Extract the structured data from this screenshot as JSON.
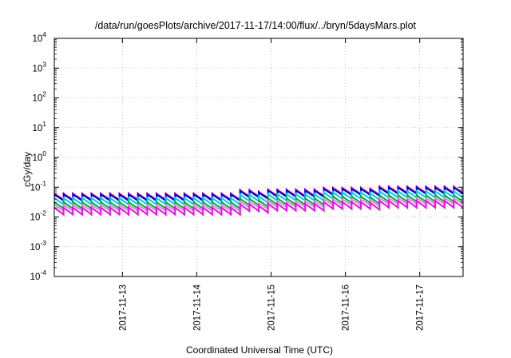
{
  "chart_data": {
    "type": "line",
    "title": "/data/run/goesPlots/archive/2017-11-17/14:00/flux/../bryn/5daysMars.plot",
    "xlabel": "Coordinated Universal Time (UTC)",
    "ylabel": "cGy/day",
    "yscale": "log",
    "ylim": [
      0.0001,
      10000
    ],
    "xlim": [
      "2017-11-12T02:00",
      "2017-11-17T14:00"
    ],
    "grid": true,
    "legend": "none",
    "x_ticks": [
      "2017-11-13",
      "2017-11-14",
      "2017-11-15",
      "2017-11-16",
      "2017-11-17"
    ],
    "y_ticks": [
      {
        "base": "10",
        "exp": "-4"
      },
      {
        "base": "10",
        "exp": "-3"
      },
      {
        "base": "10",
        "exp": "-2"
      },
      {
        "base": "10",
        "exp": "-1"
      },
      {
        "base": "10",
        "exp": "0"
      },
      {
        "base": "10",
        "exp": "1"
      },
      {
        "base": "10",
        "exp": "2"
      },
      {
        "base": "10",
        "exp": "3"
      },
      {
        "base": "10",
        "exp": "4"
      }
    ],
    "sawtooth_period_hours": 3,
    "segments": [
      {
        "start": "2017-11-12T02:00",
        "end": "2017-11-14T13:00",
        "scale": 1.0
      },
      {
        "start": "2017-11-14T13:00",
        "end": "2017-11-14T21:00",
        "scale": 1.3
      },
      {
        "start": "2017-11-14T21:00",
        "end": "2017-11-15T00:00",
        "scale": 1.15
      },
      {
        "start": "2017-11-15T00:00",
        "end": "2017-11-15T17:00",
        "scale": 1.35
      },
      {
        "start": "2017-11-15T17:00",
        "end": "2017-11-16T09:00",
        "scale": 1.55
      },
      {
        "start": "2017-11-16T09:00",
        "end": "2017-11-16T12:00",
        "scale": 1.45
      },
      {
        "start": "2017-11-16T12:00",
        "end": "2017-11-17T14:00",
        "scale": 1.7
      }
    ],
    "series": [
      {
        "color": "#ff0000",
        "peak": 0.062,
        "trough": 0.038
      },
      {
        "color": "#0000ff",
        "peak": 0.058,
        "trough": 0.035
      },
      {
        "color": "#00c8ff",
        "peak": 0.044,
        "trough": 0.026
      },
      {
        "color": "#00aa44",
        "peak": 0.032,
        "trough": 0.019
      },
      {
        "color": "#aaaaaa",
        "peak": 0.026,
        "trough": 0.016
      },
      {
        "color": "#ff00ff",
        "peak": 0.021,
        "trough": 0.012
      }
    ]
  }
}
